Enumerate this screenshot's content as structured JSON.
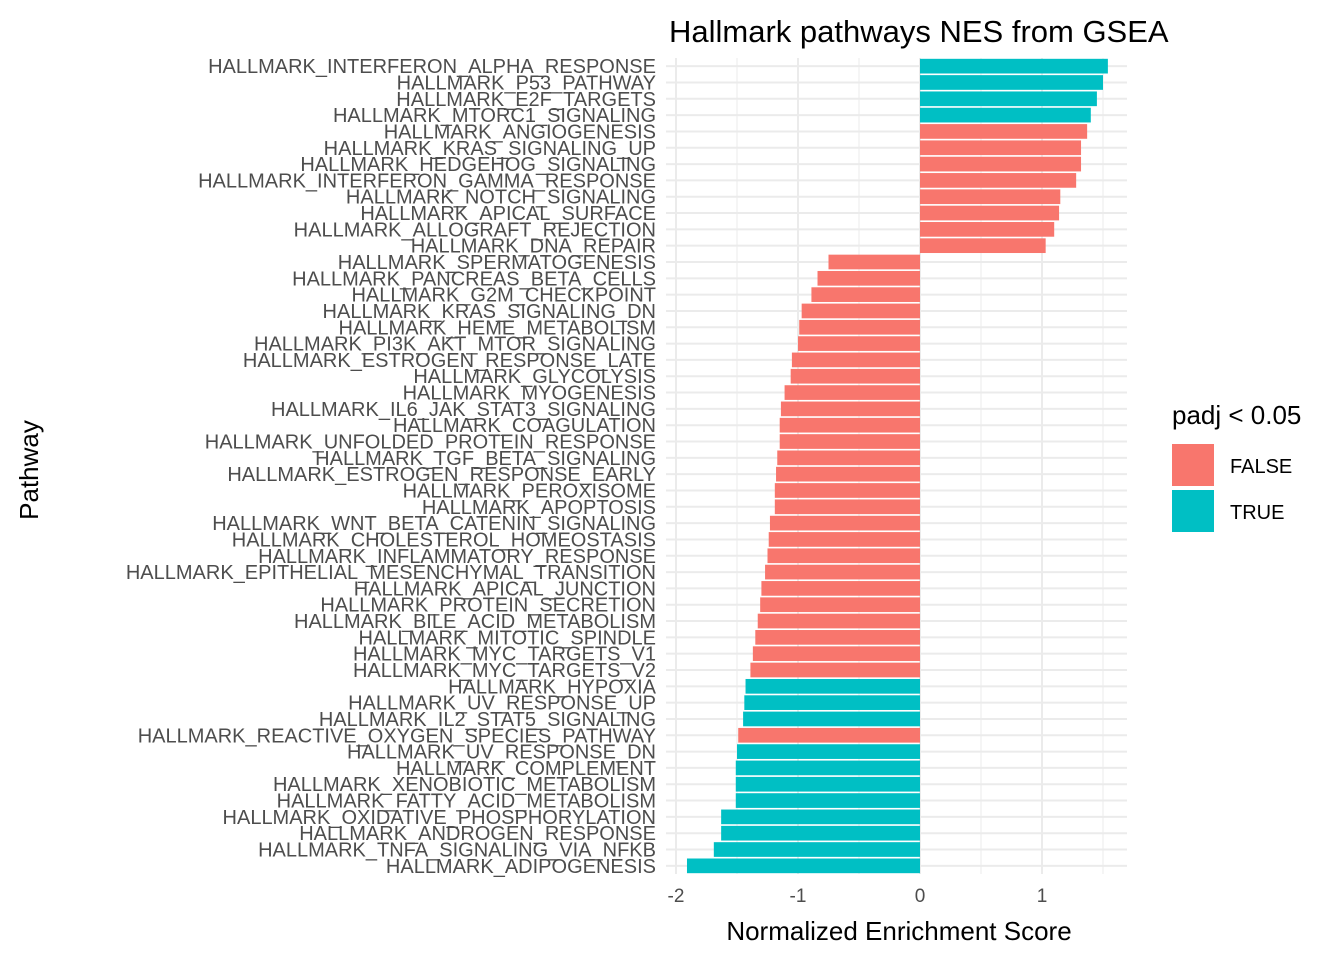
{
  "chart_data": {
    "type": "bar",
    "orientation": "horizontal",
    "title": "Hallmark pathways NES from GSEA",
    "xlabel": "Normalized Enrichment Score",
    "ylabel": "Pathway",
    "xlim": [
      -2.05,
      1.72
    ],
    "xticks": [
      -2,
      -1,
      0,
      1
    ],
    "xtick_labels": [
      "-2",
      "-1",
      "0",
      "1"
    ],
    "grid": true,
    "legend": {
      "title": "padj < 0.05",
      "placement": "right",
      "entries": [
        {
          "label": "FALSE",
          "color": "#F8766D"
        },
        {
          "label": "TRUE",
          "color": "#00BFC4"
        }
      ]
    },
    "colors": {
      "FALSE": "#F8766D",
      "TRUE": "#00BFC4"
    },
    "bars": [
      {
        "pathway": "HALLMARK_INTERFERON_ALPHA_RESPONSE",
        "nes": 1.54,
        "padj_sig": "TRUE"
      },
      {
        "pathway": "HALLMARK_P53_PATHWAY",
        "nes": 1.5,
        "padj_sig": "TRUE"
      },
      {
        "pathway": "HALLMARK_E2F_TARGETS",
        "nes": 1.45,
        "padj_sig": "TRUE"
      },
      {
        "pathway": "HALLMARK_MTORC1_SIGNALING",
        "nes": 1.4,
        "padj_sig": "TRUE"
      },
      {
        "pathway": "HALLMARK_ANGIOGENESIS",
        "nes": 1.37,
        "padj_sig": "FALSE"
      },
      {
        "pathway": "HALLMARK_KRAS_SIGNALING_UP",
        "nes": 1.32,
        "padj_sig": "FALSE"
      },
      {
        "pathway": "HALLMARK_HEDGEHOG_SIGNALING",
        "nes": 1.32,
        "padj_sig": "FALSE"
      },
      {
        "pathway": "HALLMARK_INTERFERON_GAMMA_RESPONSE",
        "nes": 1.28,
        "padj_sig": "FALSE"
      },
      {
        "pathway": "HALLMARK_NOTCH_SIGNALING",
        "nes": 1.15,
        "padj_sig": "FALSE"
      },
      {
        "pathway": "HALLMARK_APICAL_SURFACE",
        "nes": 1.14,
        "padj_sig": "FALSE"
      },
      {
        "pathway": "HALLMARK_ALLOGRAFT_REJECTION",
        "nes": 1.1,
        "padj_sig": "FALSE"
      },
      {
        "pathway": "HALLMARK_DNA_REPAIR",
        "nes": 1.03,
        "padj_sig": "FALSE"
      },
      {
        "pathway": "HALLMARK_SPERMATOGENESIS",
        "nes": -0.75,
        "padj_sig": "FALSE"
      },
      {
        "pathway": "HALLMARK_PANCREAS_BETA_CELLS",
        "nes": -0.84,
        "padj_sig": "FALSE"
      },
      {
        "pathway": "HALLMARK_G2M_CHECKPOINT",
        "nes": -0.89,
        "padj_sig": "FALSE"
      },
      {
        "pathway": "HALLMARK_KRAS_SIGNALING_DN",
        "nes": -0.97,
        "padj_sig": "FALSE"
      },
      {
        "pathway": "HALLMARK_HEME_METABOLISM",
        "nes": -0.99,
        "padj_sig": "FALSE"
      },
      {
        "pathway": "HALLMARK_PI3K_AKT_MTOR_SIGNALING",
        "nes": -1.0,
        "padj_sig": "FALSE"
      },
      {
        "pathway": "HALLMARK_ESTROGEN_RESPONSE_LATE",
        "nes": -1.05,
        "padj_sig": "FALSE"
      },
      {
        "pathway": "HALLMARK_GLYCOLYSIS",
        "nes": -1.06,
        "padj_sig": "FALSE"
      },
      {
        "pathway": "HALLMARK_MYOGENESIS",
        "nes": -1.11,
        "padj_sig": "FALSE"
      },
      {
        "pathway": "HALLMARK_IL6_JAK_STAT3_SIGNALING",
        "nes": -1.14,
        "padj_sig": "FALSE"
      },
      {
        "pathway": "HALLMARK_COAGULATION",
        "nes": -1.15,
        "padj_sig": "FALSE"
      },
      {
        "pathway": "HALLMARK_UNFOLDED_PROTEIN_RESPONSE",
        "nes": -1.15,
        "padj_sig": "FALSE"
      },
      {
        "pathway": "HALLMARK_TGF_BETA_SIGNALING",
        "nes": -1.17,
        "padj_sig": "FALSE"
      },
      {
        "pathway": "HALLMARK_ESTROGEN_RESPONSE_EARLY",
        "nes": -1.18,
        "padj_sig": "FALSE"
      },
      {
        "pathway": "HALLMARK_PEROXISOME",
        "nes": -1.19,
        "padj_sig": "FALSE"
      },
      {
        "pathway": "HALLMARK_APOPTOSIS",
        "nes": -1.19,
        "padj_sig": "FALSE"
      },
      {
        "pathway": "HALLMARK_WNT_BETA_CATENIN_SIGNALING",
        "nes": -1.23,
        "padj_sig": "FALSE"
      },
      {
        "pathway": "HALLMARK_CHOLESTEROL_HOMEOSTASIS",
        "nes": -1.24,
        "padj_sig": "FALSE"
      },
      {
        "pathway": "HALLMARK_INFLAMMATORY_RESPONSE",
        "nes": -1.25,
        "padj_sig": "FALSE"
      },
      {
        "pathway": "HALLMARK_EPITHELIAL_MESENCHYMAL_TRANSITION",
        "nes": -1.27,
        "padj_sig": "FALSE"
      },
      {
        "pathway": "HALLMARK_APICAL_JUNCTION",
        "nes": -1.3,
        "padj_sig": "FALSE"
      },
      {
        "pathway": "HALLMARK_PROTEIN_SECRETION",
        "nes": -1.31,
        "padj_sig": "FALSE"
      },
      {
        "pathway": "HALLMARK_BILE_ACID_METABOLISM",
        "nes": -1.33,
        "padj_sig": "FALSE"
      },
      {
        "pathway": "HALLMARK_MITOTIC_SPINDLE",
        "nes": -1.35,
        "padj_sig": "FALSE"
      },
      {
        "pathway": "HALLMARK_MYC_TARGETS_V1",
        "nes": -1.37,
        "padj_sig": "FALSE"
      },
      {
        "pathway": "HALLMARK_MYC_TARGETS_V2",
        "nes": -1.39,
        "padj_sig": "FALSE"
      },
      {
        "pathway": "HALLMARK_HYPOXIA",
        "nes": -1.43,
        "padj_sig": "TRUE"
      },
      {
        "pathway": "HALLMARK_UV_RESPONSE_UP",
        "nes": -1.44,
        "padj_sig": "TRUE"
      },
      {
        "pathway": "HALLMARK_IL2_STAT5_SIGNALING",
        "nes": -1.45,
        "padj_sig": "TRUE"
      },
      {
        "pathway": "HALLMARK_REACTIVE_OXYGEN_SPECIES_PATHWAY",
        "nes": -1.49,
        "padj_sig": "FALSE"
      },
      {
        "pathway": "HALLMARK_UV_RESPONSE_DN",
        "nes": -1.5,
        "padj_sig": "TRUE"
      },
      {
        "pathway": "HALLMARK_COMPLEMENT",
        "nes": -1.51,
        "padj_sig": "TRUE"
      },
      {
        "pathway": "HALLMARK_XENOBIOTIC_METABOLISM",
        "nes": -1.51,
        "padj_sig": "TRUE"
      },
      {
        "pathway": "HALLMARK_FATTY_ACID_METABOLISM",
        "nes": -1.51,
        "padj_sig": "TRUE"
      },
      {
        "pathway": "HALLMARK_OXIDATIVE_PHOSPHORYLATION",
        "nes": -1.63,
        "padj_sig": "TRUE"
      },
      {
        "pathway": "HALLMARK_ANDROGEN_RESPONSE",
        "nes": -1.63,
        "padj_sig": "TRUE"
      },
      {
        "pathway": "HALLMARK_TNFA_SIGNALING_VIA_NFKB",
        "nes": -1.69,
        "padj_sig": "TRUE"
      },
      {
        "pathway": "HALLMARK_ADIPOGENESIS",
        "nes": -1.91,
        "padj_sig": "TRUE"
      }
    ]
  }
}
